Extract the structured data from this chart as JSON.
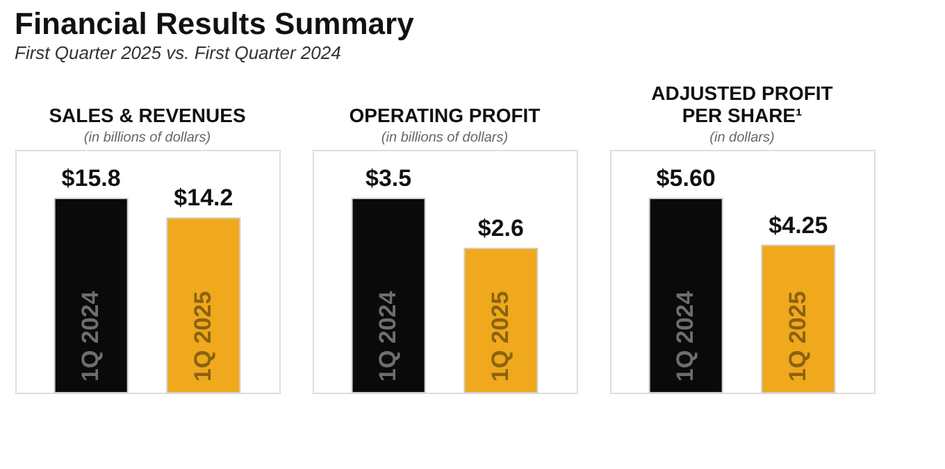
{
  "chart_data": [
    {
      "type": "bar",
      "title": "SALES & REVENUES",
      "subtitle": "(in billions of dollars)",
      "annotations": [
        "Financial Results Summary",
        "First Quarter 2025 vs. First Quarter 2024"
      ],
      "categories": [
        "1Q 2024",
        "1Q 2025"
      ],
      "values": [
        15.8,
        14.2
      ],
      "value_labels": [
        "$15.8",
        "$14.2"
      ],
      "colors": [
        "#0a0a0a",
        "#f0a81c"
      ]
    },
    {
      "type": "bar",
      "title": "OPERATING PROFIT",
      "subtitle": "(in billions of dollars)",
      "categories": [
        "1Q 2024",
        "1Q 2025"
      ],
      "values": [
        3.5,
        2.6
      ],
      "value_labels": [
        "$3.5",
        "$2.6"
      ],
      "colors": [
        "#0a0a0a",
        "#f0a81c"
      ]
    },
    {
      "type": "bar",
      "title": "ADJUSTED PROFIT PER SHARE¹",
      "subtitle": "(in dollars)",
      "categories": [
        "1Q 2024",
        "1Q 2025"
      ],
      "values": [
        5.6,
        4.25
      ],
      "value_labels": [
        "$5.60",
        "$4.25"
      ],
      "colors": [
        "#0a0a0a",
        "#f0a81c"
      ]
    }
  ]
}
